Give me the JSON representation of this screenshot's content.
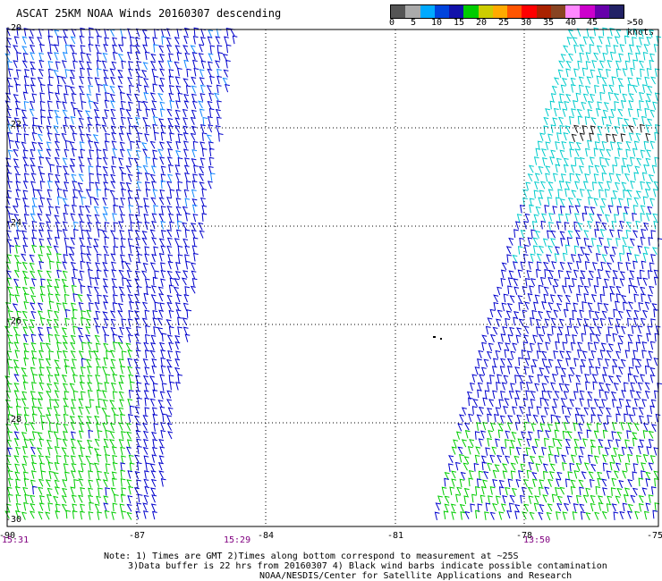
{
  "title": "ASCAT 25KM NOAA Winds 20160307 descending",
  "legend": {
    "colors": [
      "#555555",
      "#aaaaaa",
      "#00aaff",
      "#0044dd",
      "#1111aa",
      "#00cc00",
      "#cccc00",
      "#ffaa00",
      "#ff5500",
      "#ff0000",
      "#aa2200",
      "#884422",
      "#ff88ff",
      "#cc00cc",
      "#6600aa",
      "#222266"
    ],
    "labels": [
      "0",
      "5",
      "10",
      "15",
      "20",
      "25",
      "30",
      "35",
      "40",
      "45",
      ">50 knots"
    ]
  },
  "map": {
    "lat_labels": [
      "-20",
      "-22",
      "-24",
      "-26",
      "-28",
      "-30"
    ],
    "lon_labels": [
      "-87",
      "-84",
      "-81",
      "-78",
      "-75"
    ],
    "corner_lon": "-90",
    "times": [
      "15:31",
      "15:29",
      "13:50"
    ],
    "swath_colors": {
      "blue": "#0000cc",
      "light_blue": "#1188ff",
      "cyan": "#00cccc",
      "green": "#00cc00",
      "black": "#111111"
    }
  },
  "notes": {
    "line1": "Note: 1) Times are GMT 2)Times along bottom correspond to measurement at ~25S",
    "line2": "3)Data buffer is 22 hrs from 20160307 4) Black wind barbs indicate possible contamination",
    "line3": "NOAA/NESDIS/Center for Satellite Applications and Research"
  }
}
